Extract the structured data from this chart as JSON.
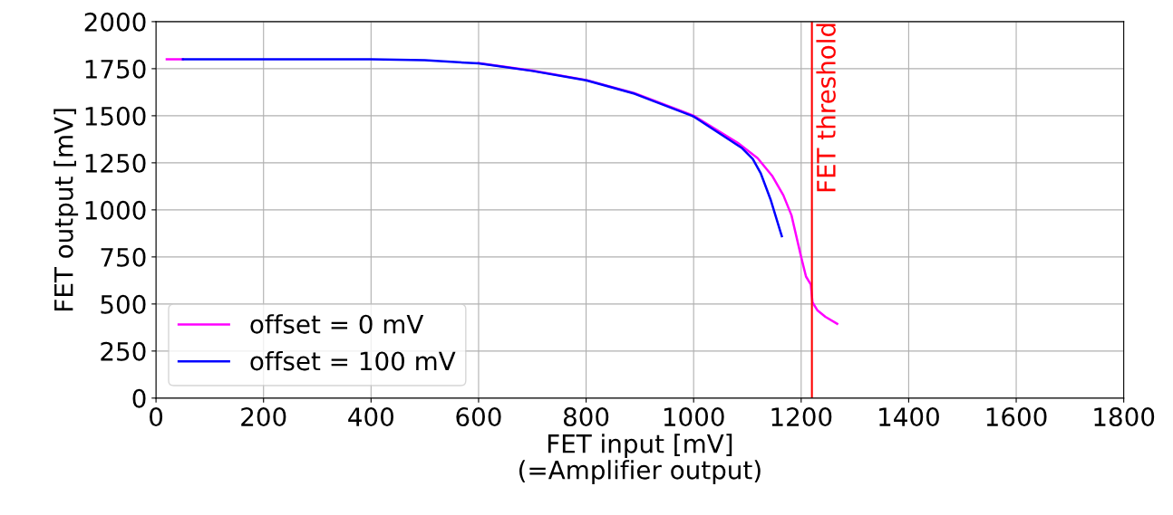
{
  "chart_data": {
    "type": "line",
    "xlabel": "FET input [mV]\n(=Amplifier output)",
    "ylabel": "FET output [mV]",
    "xlim": [
      0,
      1800
    ],
    "ylim": [
      0,
      2000
    ],
    "xticks": [
      0,
      200,
      400,
      600,
      800,
      1000,
      1200,
      1400,
      1600,
      1800
    ],
    "yticks": [
      0,
      250,
      500,
      750,
      1000,
      1250,
      1500,
      1750,
      2000
    ],
    "grid": true,
    "legend": "bottom left",
    "line_style": "solid",
    "marker": "none",
    "series": [
      {
        "name": "offset = 0 mV",
        "color": "#ff00ff",
        "x": [
          20,
          50,
          100,
          200,
          300,
          400,
          500,
          600,
          700,
          800,
          890,
          1000,
          1082,
          1119,
          1146,
          1167,
          1182,
          1200,
          1209,
          1218,
          1221,
          1230,
          1245,
          1267
        ],
        "values": [
          1800,
          1800,
          null,
          null,
          null,
          null,
          null,
          1780,
          1740,
          1690,
          1620,
          1500,
          1356,
          1275,
          1181,
          1077,
          971,
          749,
          646,
          603,
          509,
          467,
          432,
          395
        ]
      },
      {
        "name": "offset = 100 mV",
        "color": "#0000ff",
        "x": [
          50,
          100,
          200,
          300,
          400,
          500,
          600,
          700,
          800,
          890,
          1000,
          1089,
          1110,
          1125,
          1143,
          1164
        ],
        "values": [
          1800,
          1800,
          1800,
          1800,
          1800,
          1795,
          1778,
          1738,
          1688,
          1617,
          1496,
          1330,
          1270,
          1193,
          1056,
          860
        ]
      }
    ],
    "ref_lines": [
      {
        "axis": "x",
        "value": 1220,
        "label": "FET threshold",
        "color": "#ff0000",
        "line_style": "solid"
      }
    ]
  }
}
